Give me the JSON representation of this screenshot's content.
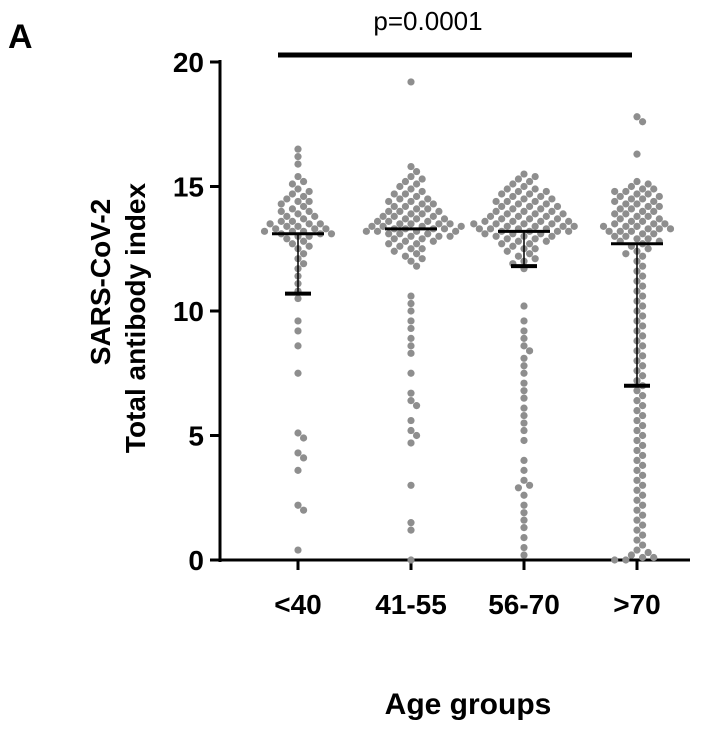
{
  "panel_label": "A",
  "colors": {
    "points": "#8e8e8e",
    "axis": "#000000",
    "stats": "#000000"
  },
  "chart_data": {
    "type": "scatter",
    "subtype": "beeswarm",
    "panel_label": "A",
    "xlabel": "Age groups",
    "ylabel_lines": [
      "SARS-CoV-2",
      "Total antibody index"
    ],
    "ylim": [
      0,
      20
    ],
    "yticks": [
      0,
      5,
      10,
      15,
      20
    ],
    "categories": [
      "<40",
      "41-55",
      "56-70",
      ">70"
    ],
    "annotations": [
      {
        "text": "p=0.0001",
        "from_category": "<40",
        "to_category": ">70"
      }
    ],
    "groups": [
      {
        "category": "<40",
        "median": 13.1,
        "q1": 10.7,
        "values": [
          16.5,
          16.2,
          15.9,
          15.4,
          15.2,
          15.1,
          14.9,
          14.8,
          14.7,
          14.6,
          14.5,
          14.4,
          14.4,
          14.3,
          14.2,
          14.1,
          14.0,
          14.0,
          13.9,
          13.8,
          13.8,
          13.7,
          13.6,
          13.6,
          13.5,
          13.5,
          13.5,
          13.4,
          13.4,
          13.3,
          13.3,
          13.3,
          13.2,
          13.2,
          13.2,
          13.1,
          13.1,
          13.1,
          13.0,
          13.0,
          12.9,
          12.8,
          12.7,
          12.6,
          12.5,
          12.3,
          12.1,
          11.9,
          11.7,
          11.4,
          11.1,
          10.8,
          10.5,
          9.6,
          9.2,
          8.6,
          7.5,
          5.1,
          4.9,
          4.3,
          4.1,
          3.6,
          2.2,
          2.0,
          0.4
        ]
      },
      {
        "category": "41-55",
        "median": 13.3,
        "q1": null,
        "values": [
          19.2,
          15.8,
          15.6,
          15.4,
          15.3,
          15.2,
          15.1,
          15.0,
          14.9,
          14.8,
          14.7,
          14.7,
          14.6,
          14.5,
          14.5,
          14.4,
          14.4,
          14.3,
          14.3,
          14.2,
          14.2,
          14.1,
          14.1,
          14.0,
          14.0,
          14.0,
          13.9,
          13.9,
          13.8,
          13.8,
          13.8,
          13.7,
          13.7,
          13.7,
          13.6,
          13.6,
          13.6,
          13.5,
          13.5,
          13.5,
          13.5,
          13.4,
          13.4,
          13.4,
          13.4,
          13.3,
          13.3,
          13.3,
          13.3,
          13.2,
          13.2,
          13.2,
          13.2,
          13.1,
          13.1,
          13.1,
          13.0,
          13.0,
          13.0,
          12.9,
          12.9,
          12.8,
          12.8,
          12.7,
          12.7,
          12.6,
          12.5,
          12.5,
          12.4,
          12.3,
          12.2,
          12.1,
          12.0,
          11.8,
          10.6,
          10.3,
          10.0,
          9.6,
          9.3,
          8.9,
          8.6,
          8.3,
          7.5,
          6.7,
          6.4,
          6.2,
          5.6,
          5.2,
          5.0,
          4.7,
          3.0,
          1.5,
          1.2,
          0.0
        ]
      },
      {
        "category": "56-70",
        "median": 13.2,
        "q1": 11.8,
        "values": [
          15.5,
          15.4,
          15.3,
          15.2,
          15.1,
          15.0,
          14.9,
          14.9,
          14.8,
          14.8,
          14.7,
          14.7,
          14.6,
          14.6,
          14.5,
          14.5,
          14.4,
          14.4,
          14.4,
          14.3,
          14.3,
          14.2,
          14.2,
          14.2,
          14.1,
          14.1,
          14.0,
          14.0,
          14.0,
          13.9,
          13.9,
          13.9,
          13.8,
          13.8,
          13.8,
          13.7,
          13.7,
          13.7,
          13.6,
          13.6,
          13.6,
          13.6,
          13.5,
          13.5,
          13.5,
          13.5,
          13.4,
          13.4,
          13.4,
          13.4,
          13.3,
          13.3,
          13.3,
          13.3,
          13.2,
          13.2,
          13.2,
          13.2,
          13.1,
          13.1,
          13.1,
          13.0,
          13.0,
          13.0,
          12.9,
          12.9,
          12.8,
          12.8,
          12.7,
          12.7,
          12.6,
          12.5,
          12.5,
          12.4,
          12.3,
          12.2,
          12.1,
          12.0,
          11.9,
          11.7,
          10.2,
          9.6,
          9.2,
          8.9,
          8.6,
          8.4,
          8.1,
          7.8,
          7.5,
          7.1,
          6.8,
          6.5,
          6.1,
          5.8,
          5.5,
          5.2,
          4.8,
          4.0,
          3.6,
          3.2,
          3.0,
          2.9,
          2.6,
          2.2,
          1.9,
          1.6,
          1.3,
          0.9,
          0.5,
          0.2
        ]
      },
      {
        "category": ">70",
        "median": 12.7,
        "q1": 7.0,
        "values": [
          17.8,
          17.6,
          16.3,
          15.2,
          15.1,
          15.0,
          14.9,
          14.9,
          14.8,
          14.8,
          14.7,
          14.7,
          14.6,
          14.6,
          14.5,
          14.5,
          14.4,
          14.4,
          14.3,
          14.3,
          14.2,
          14.2,
          14.1,
          14.1,
          14.0,
          14.0,
          13.9,
          13.9,
          13.8,
          13.8,
          13.7,
          13.7,
          13.6,
          13.6,
          13.5,
          13.5,
          13.5,
          13.4,
          13.4,
          13.4,
          13.3,
          13.3,
          13.3,
          13.2,
          13.2,
          13.2,
          13.1,
          13.1,
          13.0,
          13.0,
          12.9,
          12.9,
          12.8,
          12.8,
          12.7,
          12.6,
          12.5,
          12.4,
          12.3,
          12.2,
          12.0,
          11.8,
          11.6,
          11.4,
          11.2,
          11.0,
          10.8,
          10.6,
          10.4,
          10.2,
          10.0,
          9.8,
          9.6,
          9.4,
          9.2,
          9.0,
          8.8,
          8.6,
          8.4,
          8.2,
          8.0,
          7.8,
          7.6,
          7.4,
          7.2,
          7.0,
          6.8,
          6.6,
          6.4,
          6.2,
          6.0,
          5.8,
          5.6,
          5.4,
          5.2,
          5.0,
          4.8,
          4.6,
          4.4,
          4.2,
          4.0,
          3.8,
          3.6,
          3.4,
          3.2,
          3.0,
          2.8,
          2.6,
          2.4,
          2.2,
          2.0,
          1.8,
          1.6,
          1.4,
          1.2,
          1.0,
          0.8,
          0.6,
          0.4,
          0.3,
          0.2,
          0.1,
          0.1,
          0.0,
          0.0
        ]
      }
    ]
  }
}
